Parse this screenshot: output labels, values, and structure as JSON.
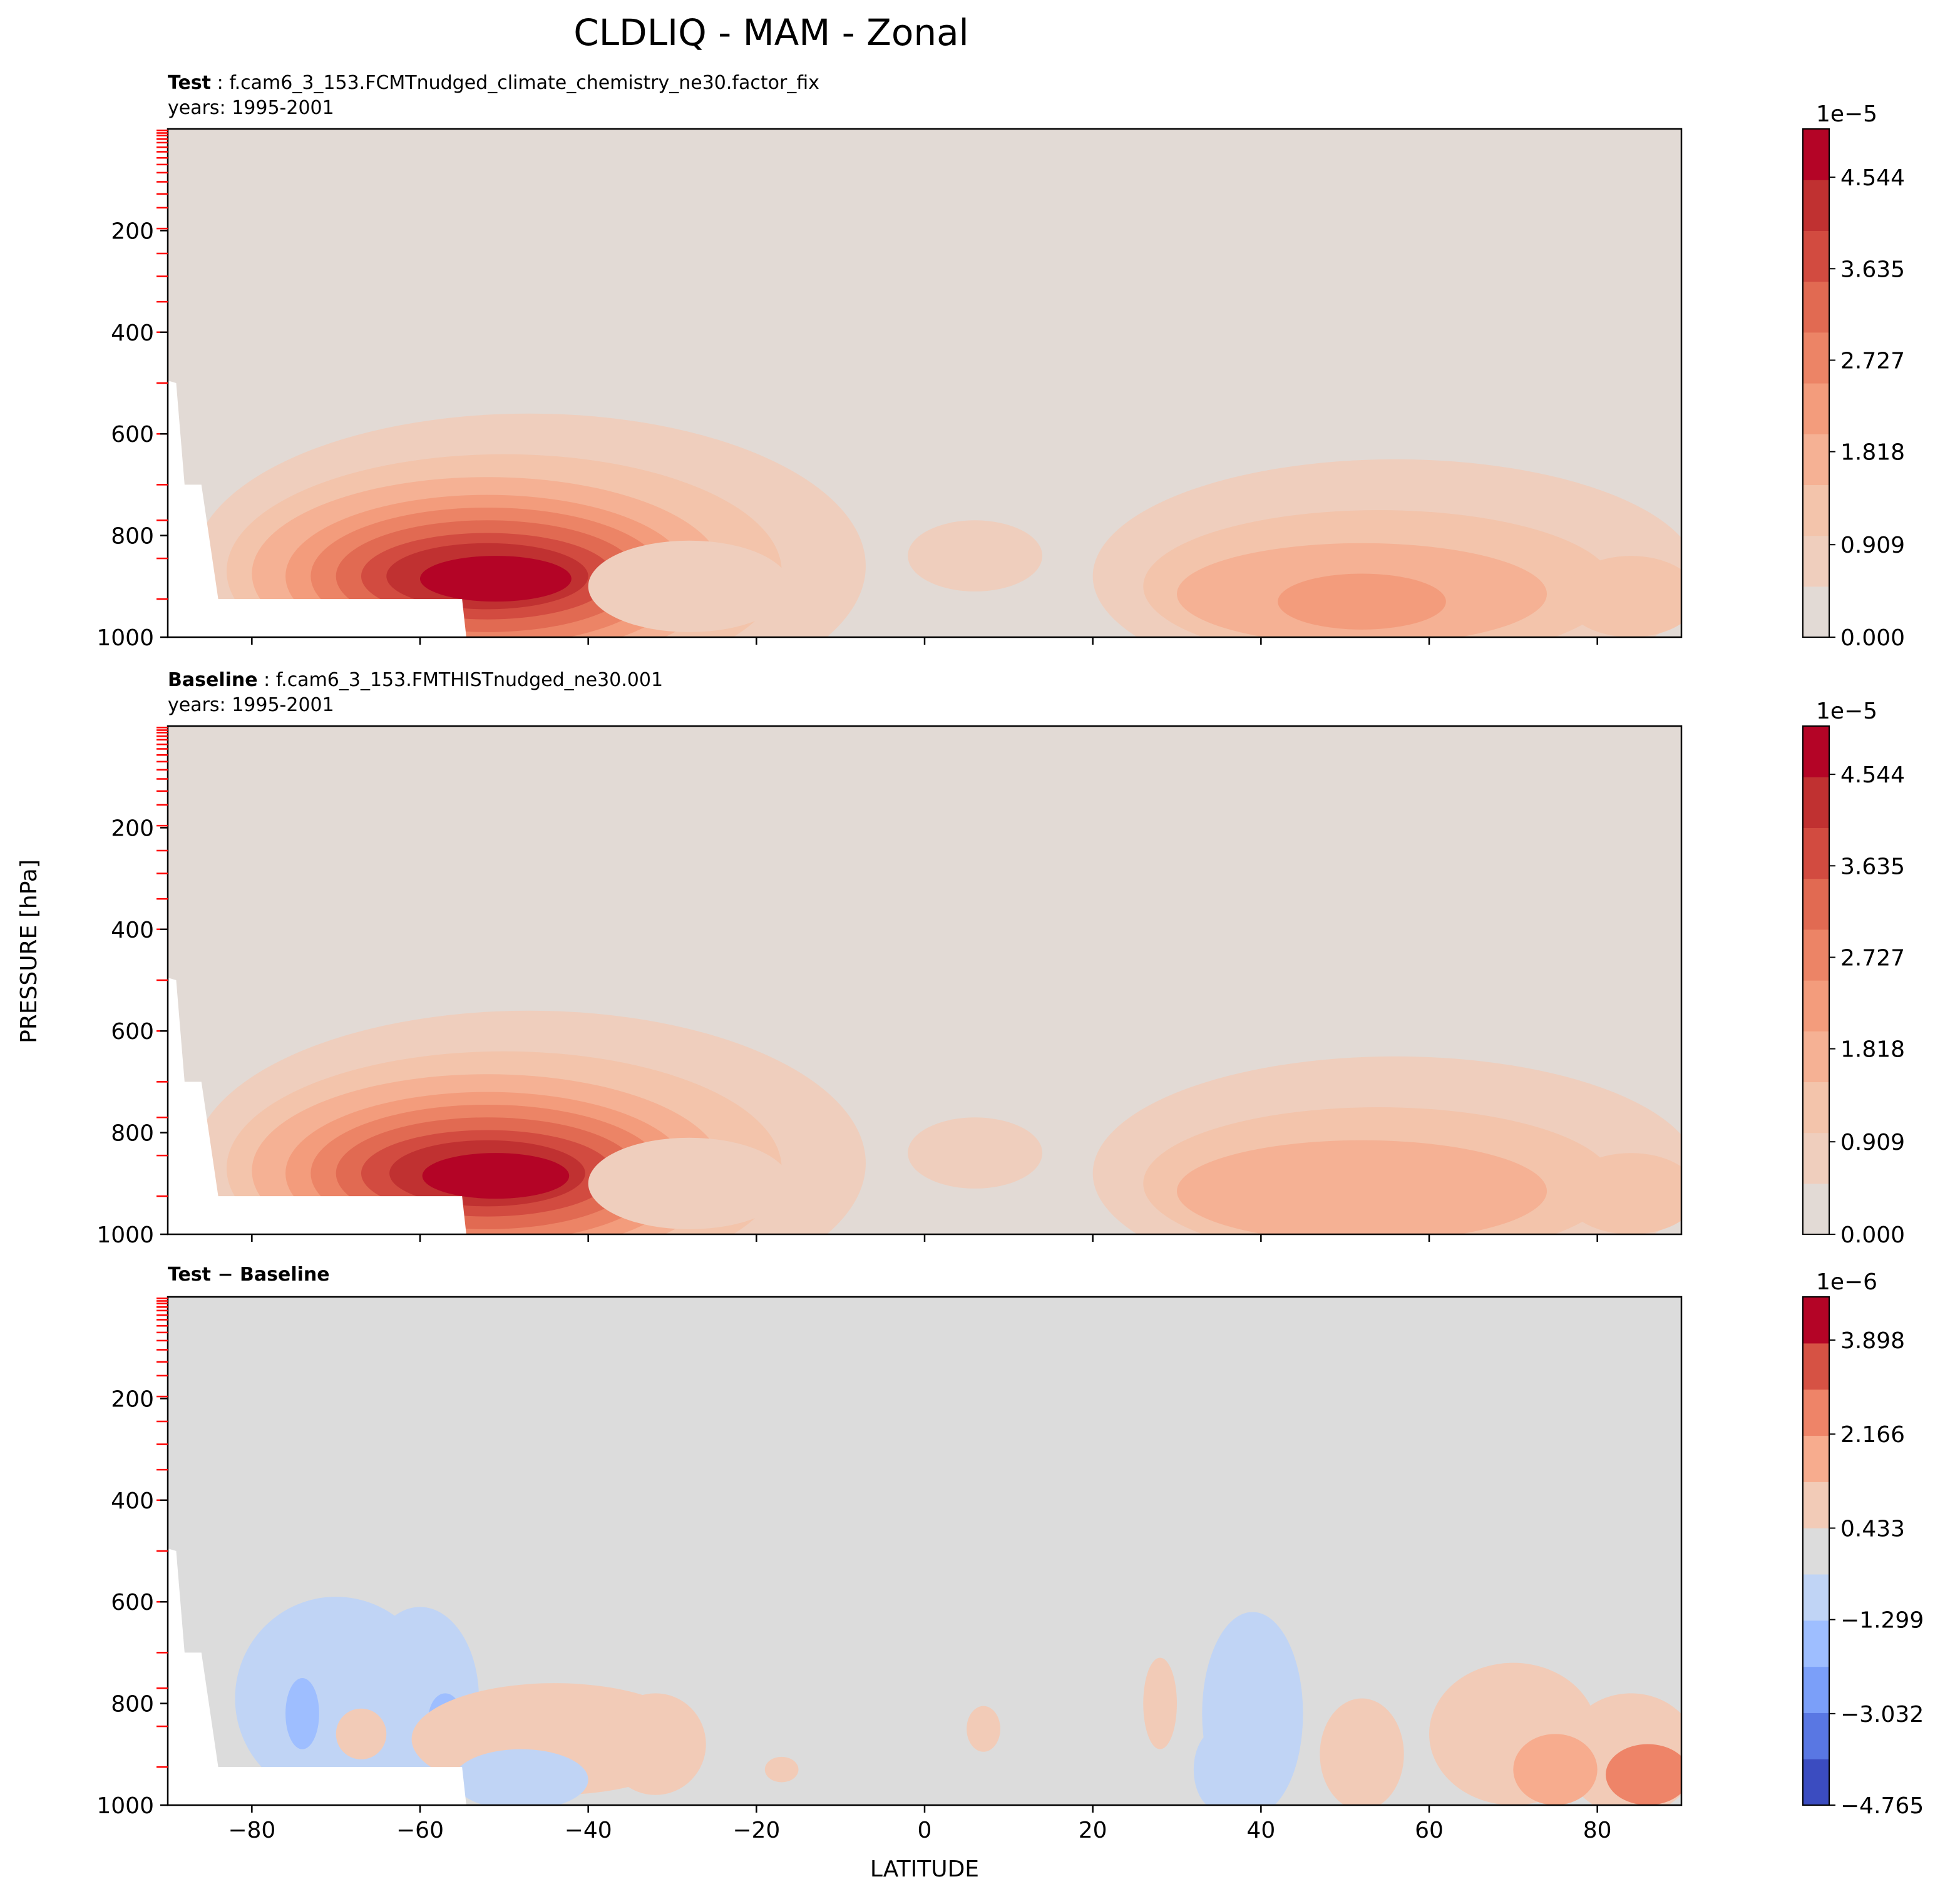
{
  "figure_title": "CLDLIQ - MAM - Zonal",
  "ylabel": "PRESSURE [hPa]",
  "xlabel": "LATITUDE",
  "x_ticks": [
    -80,
    -60,
    -40,
    -20,
    0,
    20,
    40,
    60,
    80
  ],
  "x_tick_labels": [
    "−80",
    "−60",
    "−40",
    "−20",
    "0",
    "20",
    "40",
    "60",
    "80"
  ],
  "y_ticks": [
    200,
    400,
    600,
    800,
    1000
  ],
  "y_tick_labels": [
    "200",
    "400",
    "600",
    "800",
    "1000"
  ],
  "colors": {
    "background_pos": "#e2dad5",
    "background_diff": "#dcdcdc",
    "level_marks": "#ff0000"
  },
  "panels": [
    {
      "label_bold": "Test",
      "label_sep": " : ",
      "label_rest": "f.cam6_3_153.FCMTnudged_climate_chemistry_ne30.factor_fix",
      "years": "years: 1995-2001",
      "colorbar_exponent": "1e−5",
      "colorbar_tick_labels": [
        "4.544",
        "3.635",
        "2.727",
        "1.818",
        "0.909",
        "0.000"
      ]
    },
    {
      "label_bold": "Baseline",
      "label_sep": " : ",
      "label_rest": "f.cam6_3_153.FMTHISTnudged_ne30.001",
      "years": "years: 1995-2001",
      "colorbar_exponent": "1e−5",
      "colorbar_tick_labels": [
        "4.544",
        "3.635",
        "2.727",
        "1.818",
        "0.909",
        "0.000"
      ]
    },
    {
      "label_bold": "Test − Baseline",
      "label_sep": "",
      "label_rest": "",
      "years": "",
      "colorbar_exponent": "1e−6",
      "colorbar_tick_labels": [
        "3.898",
        "2.166",
        "0.433",
        "−1.299",
        "−3.032",
        "−4.765"
      ]
    }
  ],
  "chart_data": [
    {
      "type": "heatmap",
      "title": "Test : f.cam6_3_153.FCMTnudged_climate_chemistry_ne30.factor_fix",
      "xlabel": "LATITUDE",
      "ylabel": "PRESSURE [hPa]",
      "xlim": [
        -90,
        90
      ],
      "ylim": [
        1000,
        0
      ],
      "colorbar": {
        "min": 0.0,
        "max": 4.998,
        "scale": "1e-5",
        "levels": 11
      },
      "features": [
        {
          "region": "southern max",
          "lat": -52,
          "pressure": 870,
          "value": 4.8
        },
        {
          "region": "northern mid-latitudes",
          "lat_range": [
            20,
            90
          ],
          "pressure_range": [
            650,
            1000
          ],
          "max_value": 2.5
        },
        {
          "region": "tropics",
          "lat": 5,
          "pressure": 830,
          "value": 0.5
        }
      ],
      "colors": [
        "#e2dad5",
        "#efcebd",
        "#f3c4ab",
        "#f5b194",
        "#f39c7c",
        "#ec8466",
        "#e16a52",
        "#d24b40",
        "#c03131",
        "#b40426"
      ]
    },
    {
      "type": "heatmap",
      "title": "Baseline : f.cam6_3_153.FMTHISTnudged_ne30.001",
      "xlabel": "LATITUDE",
      "ylabel": "PRESSURE [hPa]",
      "xlim": [
        -90,
        90
      ],
      "ylim": [
        1000,
        0
      ],
      "colorbar": {
        "min": 0.0,
        "max": 4.998,
        "scale": "1e-5",
        "levels": 11
      },
      "features": [
        {
          "region": "southern max",
          "lat": -52,
          "pressure": 870,
          "value": 4.7
        },
        {
          "region": "northern mid-latitudes",
          "lat_range": [
            20,
            90
          ],
          "pressure_range": [
            650,
            1000
          ],
          "max_value": 2.3
        },
        {
          "region": "tropics",
          "lat": 5,
          "pressure": 830,
          "value": 0.5
        }
      ],
      "colors": [
        "#e2dad5",
        "#efcebd",
        "#f3c4ab",
        "#f5b194",
        "#f39c7c",
        "#ec8466",
        "#e16a52",
        "#d24b40",
        "#c03131",
        "#b40426"
      ]
    },
    {
      "type": "heatmap",
      "title": "Test − Baseline",
      "xlabel": "LATITUDE",
      "ylabel": "PRESSURE [hPa]",
      "xlim": [
        -90,
        90
      ],
      "ylim": [
        1000,
        0
      ],
      "colorbar": {
        "min": -4.765,
        "max": 4.765,
        "scale": "1e-6",
        "levels": 12
      },
      "features": [
        {
          "region": "southern negative",
          "lat_range": [
            -80,
            -55
          ],
          "pressure_range": [
            580,
            1000
          ],
          "value": -1.5
        },
        {
          "region": "southern positive",
          "lat_range": [
            -55,
            -25
          ],
          "pressure_range": [
            780,
            1000
          ],
          "value": 1.0
        },
        {
          "region": "northern negative",
          "lat_range": [
            33,
            45
          ],
          "pressure_range": [
            620,
            1000
          ],
          "value": -1.0
        },
        {
          "region": "northern positive",
          "lat_range": [
            50,
            90
          ],
          "pressure_range": [
            750,
            1000
          ],
          "value": 2.5
        }
      ],
      "colors": [
        "#3b4cc0",
        "#5977e3",
        "#7b9ff9",
        "#9ebeff",
        "#c0d4f5",
        "#dcdcdc",
        "#f2cbb7",
        "#f7ac8e",
        "#ee8468",
        "#d65244",
        "#b40426"
      ]
    }
  ]
}
